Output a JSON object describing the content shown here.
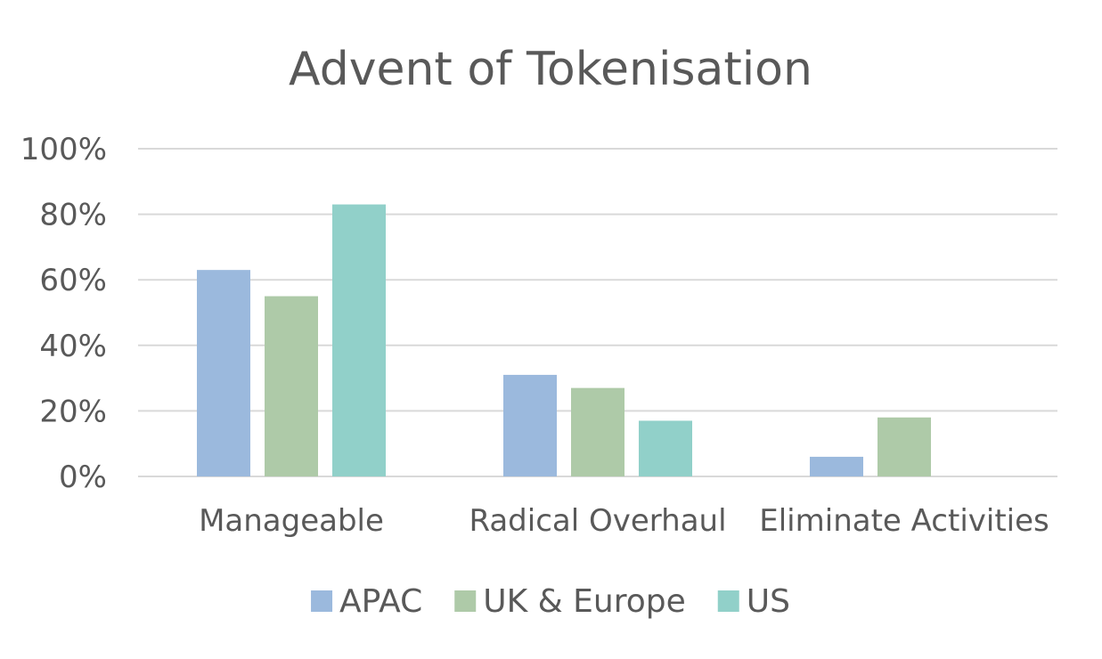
{
  "chart_data": {
    "type": "bar",
    "title": "Advent of Tokenisation",
    "xlabel": "",
    "ylabel": "",
    "categories": [
      "Manageable",
      "Radical Overhaul",
      "Eliminate Activities"
    ],
    "series": [
      {
        "name": "APAC",
        "values": [
          63,
          31,
          6
        ],
        "color": "#9bb9dd"
      },
      {
        "name": "UK & Europe",
        "values": [
          55,
          27,
          18
        ],
        "color": "#aecaa8"
      },
      {
        "name": "US",
        "values": [
          83,
          17,
          0
        ],
        "color": "#91d0c9"
      }
    ],
    "ylim": [
      0,
      100
    ],
    "yticks": [
      0,
      20,
      40,
      60,
      80,
      100
    ],
    "ytick_labels": [
      "0%",
      "20%",
      "40%",
      "60%",
      "80%",
      "100%"
    ],
    "grid": true,
    "legend_position": "bottom"
  }
}
